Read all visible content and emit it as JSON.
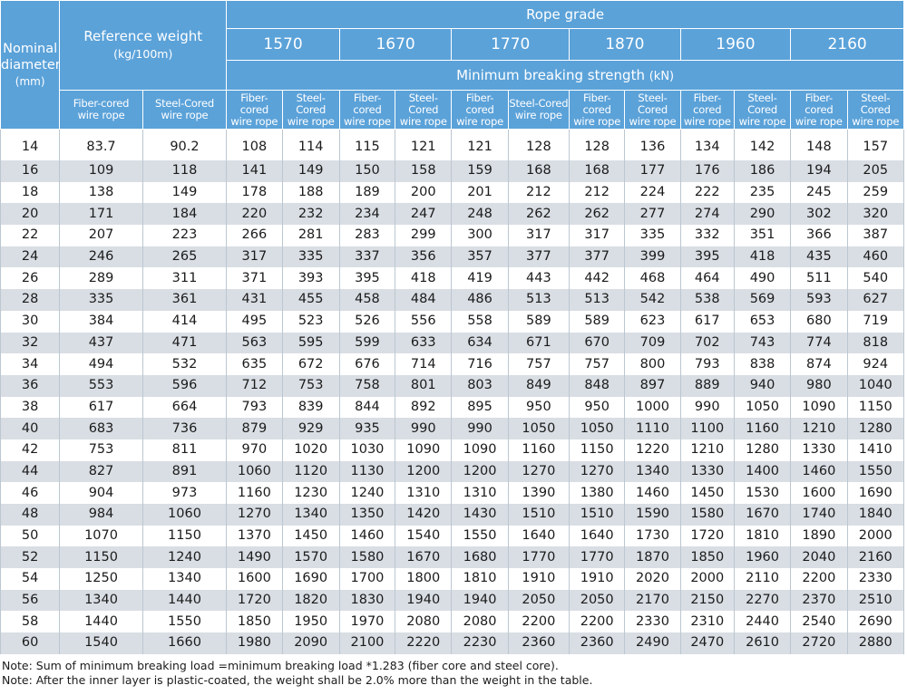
{
  "header": {
    "nominal_line1": "Nominal",
    "nominal_line2": "diameter",
    "nominal_unit": "(mm)",
    "ref_weight": "Reference weight",
    "ref_weight_unit": "(kg/100m)",
    "rope_grade": "Rope grade",
    "grades": [
      "1570",
      "1670",
      "1770",
      "1870",
      "1960",
      "2160"
    ],
    "min_breaking": "Minimum breaking strength",
    "min_breaking_unit": "(kN)",
    "ref_sub": [
      {
        "line1": "Fiber-cored",
        "line2": "wire rope"
      },
      {
        "line1": "Steel-Cored",
        "line2": "wire rope"
      }
    ],
    "grade_sub": [
      {
        "line1": "Fiber-cored",
        "line2": "wire rope"
      },
      {
        "line1": "Steel-Cored",
        "line2": "wire rope"
      }
    ]
  },
  "rows": [
    [
      "14",
      "83.7",
      "90.2",
      "108",
      "114",
      "115",
      "121",
      "121",
      "128",
      "128",
      "136",
      "134",
      "142",
      "148",
      "157"
    ],
    [
      "16",
      "109",
      "118",
      "141",
      "149",
      "150",
      "158",
      "159",
      "168",
      "168",
      "177",
      "176",
      "186",
      "194",
      "205"
    ],
    [
      "18",
      "138",
      "149",
      "178",
      "188",
      "189",
      "200",
      "201",
      "212",
      "212",
      "224",
      "222",
      "235",
      "245",
      "259"
    ],
    [
      "20",
      "171",
      "184",
      "220",
      "232",
      "234",
      "247",
      "248",
      "262",
      "262",
      "277",
      "274",
      "290",
      "302",
      "320"
    ],
    [
      "22",
      "207",
      "223",
      "266",
      "281",
      "283",
      "299",
      "300",
      "317",
      "317",
      "335",
      "332",
      "351",
      "366",
      "387"
    ],
    [
      "24",
      "246",
      "265",
      "317",
      "335",
      "337",
      "356",
      "357",
      "377",
      "377",
      "399",
      "395",
      "418",
      "435",
      "460"
    ],
    [
      "26",
      "289",
      "311",
      "371",
      "393",
      "395",
      "418",
      "419",
      "443",
      "442",
      "468",
      "464",
      "490",
      "511",
      "540"
    ],
    [
      "28",
      "335",
      "361",
      "431",
      "455",
      "458",
      "484",
      "486",
      "513",
      "513",
      "542",
      "538",
      "569",
      "593",
      "627"
    ],
    [
      "30",
      "384",
      "414",
      "495",
      "523",
      "526",
      "556",
      "558",
      "589",
      "589",
      "623",
      "617",
      "653",
      "680",
      "719"
    ],
    [
      "32",
      "437",
      "471",
      "563",
      "595",
      "599",
      "633",
      "634",
      "671",
      "670",
      "709",
      "702",
      "743",
      "774",
      "818"
    ],
    [
      "34",
      "494",
      "532",
      "635",
      "672",
      "676",
      "714",
      "716",
      "757",
      "757",
      "800",
      "793",
      "838",
      "874",
      "924"
    ],
    [
      "36",
      "553",
      "596",
      "712",
      "753",
      "758",
      "801",
      "803",
      "849",
      "848",
      "897",
      "889",
      "940",
      "980",
      "1040"
    ],
    [
      "38",
      "617",
      "664",
      "793",
      "839",
      "844",
      "892",
      "895",
      "950",
      "950",
      "1000",
      "990",
      "1050",
      "1090",
      "1150"
    ],
    [
      "40",
      "683",
      "736",
      "879",
      "929",
      "935",
      "990",
      "990",
      "1050",
      "1050",
      "1110",
      "1100",
      "1160",
      "1210",
      "1280"
    ],
    [
      "42",
      "753",
      "811",
      "970",
      "1020",
      "1030",
      "1090",
      "1090",
      "1160",
      "1150",
      "1220",
      "1210",
      "1280",
      "1330",
      "1410"
    ],
    [
      "44",
      "827",
      "891",
      "1060",
      "1120",
      "1130",
      "1200",
      "1200",
      "1270",
      "1270",
      "1340",
      "1330",
      "1400",
      "1460",
      "1550"
    ],
    [
      "46",
      "904",
      "973",
      "1160",
      "1230",
      "1240",
      "1310",
      "1310",
      "1390",
      "1380",
      "1460",
      "1450",
      "1530",
      "1600",
      "1690"
    ],
    [
      "48",
      "984",
      "1060",
      "1270",
      "1340",
      "1350",
      "1420",
      "1430",
      "1510",
      "1510",
      "1590",
      "1580",
      "1670",
      "1740",
      "1840"
    ],
    [
      "50",
      "1070",
      "1150",
      "1370",
      "1450",
      "1460",
      "1540",
      "1550",
      "1640",
      "1640",
      "1730",
      "1720",
      "1810",
      "1890",
      "2000"
    ],
    [
      "52",
      "1150",
      "1240",
      "1490",
      "1570",
      "1580",
      "1670",
      "1680",
      "1770",
      "1770",
      "1870",
      "1850",
      "1960",
      "2040",
      "2160"
    ],
    [
      "54",
      "1250",
      "1340",
      "1600",
      "1690",
      "1700",
      "1800",
      "1810",
      "1910",
      "1910",
      "2020",
      "2000",
      "2110",
      "2200",
      "2330"
    ],
    [
      "56",
      "1340",
      "1440",
      "1720",
      "1820",
      "1830",
      "1940",
      "1940",
      "2050",
      "2050",
      "2170",
      "2150",
      "2270",
      "2370",
      "2510"
    ],
    [
      "58",
      "1440",
      "1550",
      "1850",
      "1950",
      "1970",
      "2080",
      "2080",
      "2200",
      "2200",
      "2330",
      "2310",
      "2440",
      "2540",
      "2690"
    ],
    [
      "60",
      "1540",
      "1660",
      "1980",
      "2090",
      "2100",
      "2220",
      "2230",
      "2360",
      "2360",
      "2490",
      "2470",
      "2610",
      "2720",
      "2880"
    ]
  ],
  "notes": [
    "Note: Sum of minimum breaking load =minimum breaking load *1.283 (fiber core and steel core).",
    "Note: After the inner layer is plastic-coated, the weight shall be 2.0% more than the weight in the table."
  ],
  "colors": {
    "header_bg": "#5ba2d9",
    "header_text": "#ffffff",
    "stripe": "#d9dee4"
  }
}
